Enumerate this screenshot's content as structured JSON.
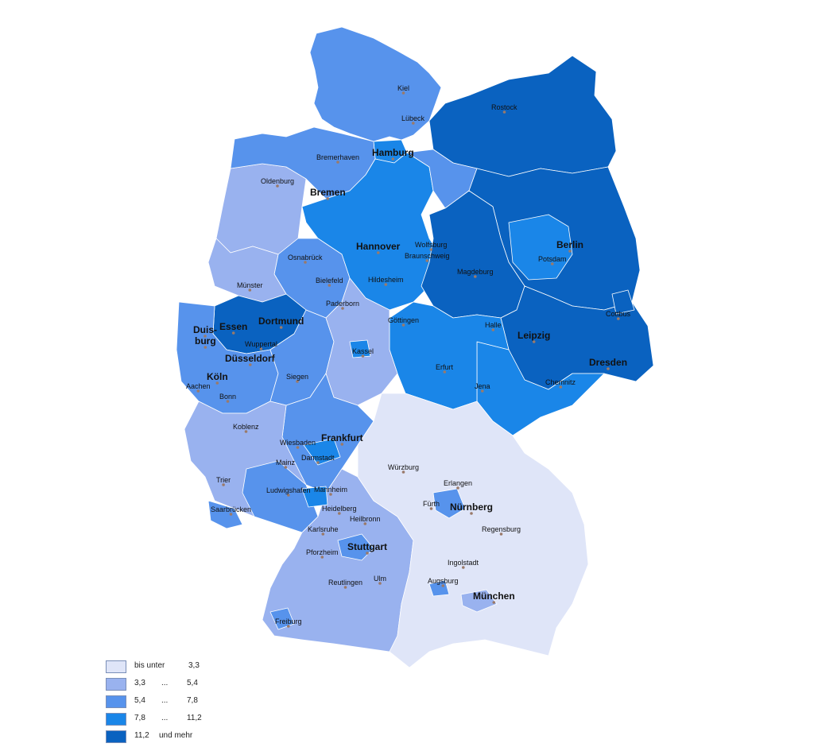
{
  "colors": {
    "c1": "#dfe5f8",
    "c2": "#99b2ef",
    "c3": "#5793ec",
    "c4": "#1a86e8",
    "c5": "#0a62c0",
    "border": "#ffffff"
  },
  "legend": [
    {
      "a": "bis unter",
      "b": "",
      "c": "3,3"
    },
    {
      "a": "3,3",
      "b": "...",
      "c": "5,4"
    },
    {
      "a": "5,4",
      "b": "...",
      "c": "7,8"
    },
    {
      "a": "7,8",
      "b": "...",
      "c": "11,2"
    },
    {
      "a": "11,2",
      "b": "und mehr",
      "c": ""
    }
  ],
  "cities": {
    "kiel": "Kiel",
    "luebeck": "Lübeck",
    "rostock": "Rostock",
    "hamburg": "Hamburg",
    "bremerhaven": "Bremerhaven",
    "oldenburg": "Oldenburg",
    "bremen": "Bremen",
    "hannover": "Hannover",
    "wolfsburg": "Wolfsburg",
    "braunschweig": "Braunschweig",
    "berlin": "Berlin",
    "potsdam": "Potsdam",
    "osnabrueck": "Osnabrück",
    "muenster": "Münster",
    "bielefeld": "Bielefeld",
    "hildesheim": "Hildesheim",
    "magdeburg": "Magdeburg",
    "paderborn": "Paderborn",
    "cottbus": "Cottbus",
    "duisburg1": "Duis-",
    "duisburg2": "burg",
    "essen": "Essen",
    "dortmund": "Dortmund",
    "wuppertal": "Wuppertal",
    "duesseldorf": "Düsseldorf",
    "goettingen": "Göttingen",
    "halle": "Halle",
    "leipzig": "Leipzig",
    "kassel": "Kassel",
    "dresden": "Dresden",
    "koeln": "Köln",
    "aachen": "Aachen",
    "bonn": "Bonn",
    "siegen": "Siegen",
    "erfurt": "Erfurt",
    "jena": "Jena",
    "chemnitz": "Chemnitz",
    "koblenz": "Koblenz",
    "wiesbaden": "Wiesbaden",
    "frankfurt": "Frankfurt",
    "mainz": "Mainz",
    "darmstadt": "Darmstadt",
    "wuerzburg": "Würzburg",
    "trier": "Trier",
    "erlangen": "Erlangen",
    "ludwigshafen": "Ludwigshafen",
    "mannheim": "Mannheim",
    "fuerth": "Fürth",
    "nuernberg": "Nürnberg",
    "saarbruecken": "Saarbrücken",
    "heidelberg": "Heidelberg",
    "heilbronn": "Heilbronn",
    "regensburg": "Regensburg",
    "karlsruhe": "Karlsruhe",
    "stuttgart": "Stuttgart",
    "pforzheim": "Pforzheim",
    "ingolstadt": "Ingolstadt",
    "ulm": "Ulm",
    "reutlingen": "Reutlingen",
    "augsburg": "Augsburg",
    "muenchen": "München",
    "freiburg": "Freiburg"
  }
}
